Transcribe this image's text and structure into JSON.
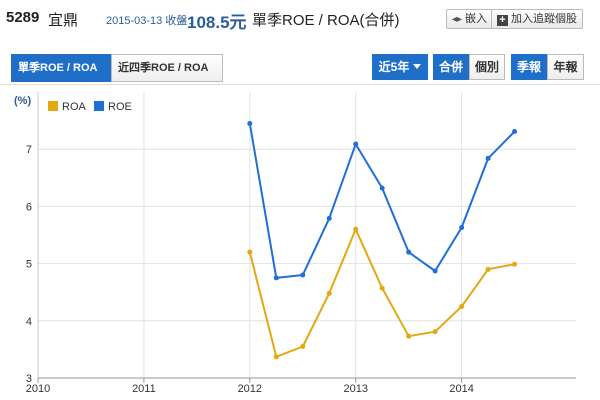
{
  "header": {
    "stock_code": "5289",
    "stock_name": "宜鼎",
    "date_text": "2015-03-13 收盤：",
    "price": "108.5元",
    "page_title": "單季ROE / ROA(合併)",
    "embed_label": "嵌入",
    "track_label": "加入追蹤個股"
  },
  "tabs": [
    {
      "label": "單季ROE / ROA",
      "active": true
    },
    {
      "label": "近四季ROE / ROA",
      "active": false
    }
  ],
  "controls": {
    "period_label": "近5年",
    "consolidated_label": "合併",
    "individual_label": "個別",
    "quarterly_label": "季報",
    "annual_label": "年報"
  },
  "chart_data": {
    "type": "line",
    "unit_label": "(%)",
    "x_ticks": [
      "2010",
      "2011",
      "2012",
      "2013",
      "2014"
    ],
    "y_ticks": [
      "3",
      "4",
      "5",
      "6",
      "7"
    ],
    "xlim": [
      2010,
      2015.08
    ],
    "ylim": [
      3,
      8
    ],
    "grid": true,
    "legend_position": "top-left",
    "series": [
      {
        "name": "ROA",
        "color": "#e3a812",
        "x": [
          2012.0,
          2012.25,
          2012.5,
          2012.75,
          2013.0,
          2013.25,
          2013.5,
          2013.75,
          2014.0,
          2014.25,
          2014.5
        ],
        "values": [
          5.2,
          3.37,
          3.55,
          4.48,
          5.6,
          4.57,
          3.73,
          3.81,
          4.25,
          4.9,
          4.99
        ]
      },
      {
        "name": "ROE",
        "color": "#1f6fd6",
        "x": [
          2012.0,
          2012.25,
          2012.5,
          2012.75,
          2013.0,
          2013.25,
          2013.5,
          2013.75,
          2014.0,
          2014.25,
          2014.5
        ],
        "values": [
          7.45,
          4.75,
          4.8,
          5.79,
          7.09,
          6.32,
          5.2,
          4.87,
          5.63,
          6.84,
          7.31
        ]
      }
    ]
  }
}
